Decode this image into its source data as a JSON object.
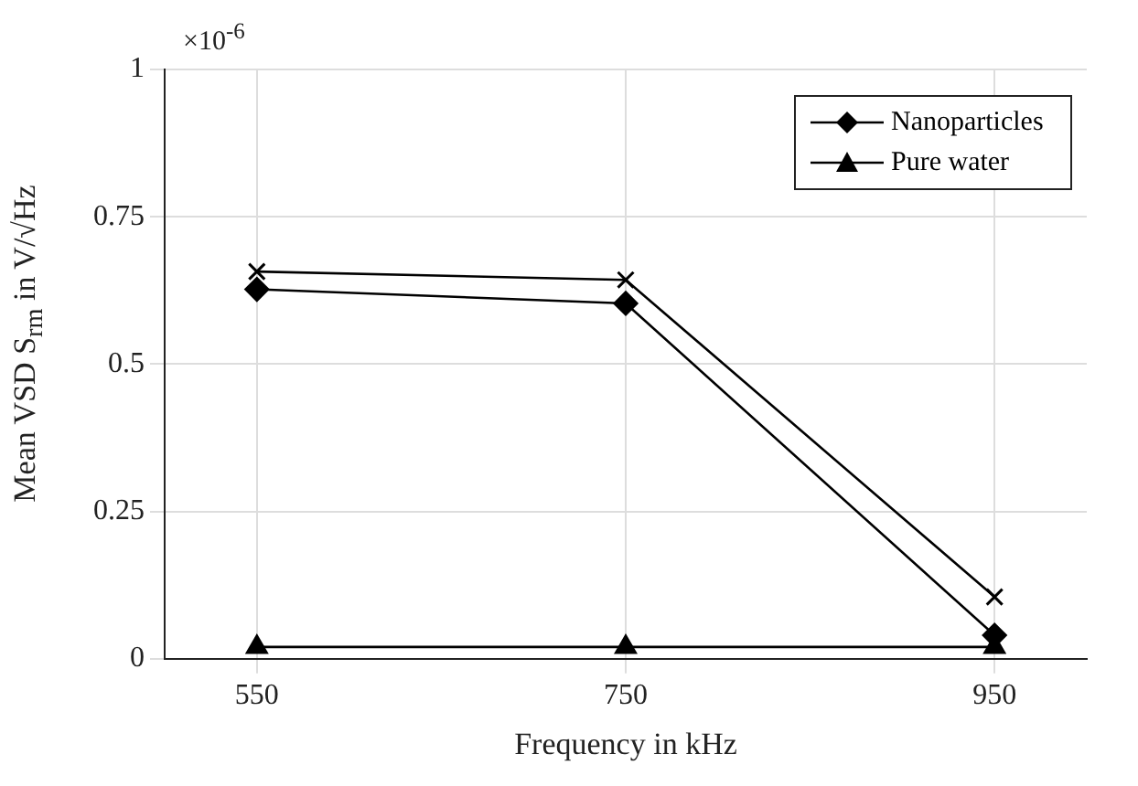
{
  "chart_data": {
    "type": "line",
    "xlabel": "Frequency in kHz",
    "ylabel": "Mean VSD S$_{rm}$ in V/√Hz",
    "annotations": [
      "×10$^{-6}$"
    ],
    "x": [
      550,
      750,
      950
    ],
    "xlim": [
      500,
      1000
    ],
    "xticks": [
      550,
      750,
      950
    ],
    "ylim": [
      0,
      1
    ],
    "yticks": [
      0,
      0.25,
      0.5,
      0.75,
      1
    ],
    "grid": true,
    "legend": "top right",
    "line_style": "solid",
    "series": [
      {
        "name": "Nanoparticles",
        "color": "#000000",
        "marker": "diamond",
        "values": [
          0.627,
          0.603,
          0.04
        ]
      },
      {
        "color": "#000000",
        "marker": "cross",
        "values": [
          0.657,
          0.643,
          0.105
        ]
      },
      {
        "name": "Pure water",
        "color": "#000000",
        "marker": "triangle",
        "values": [
          0.02,
          0.02,
          0.02
        ]
      }
    ]
  }
}
